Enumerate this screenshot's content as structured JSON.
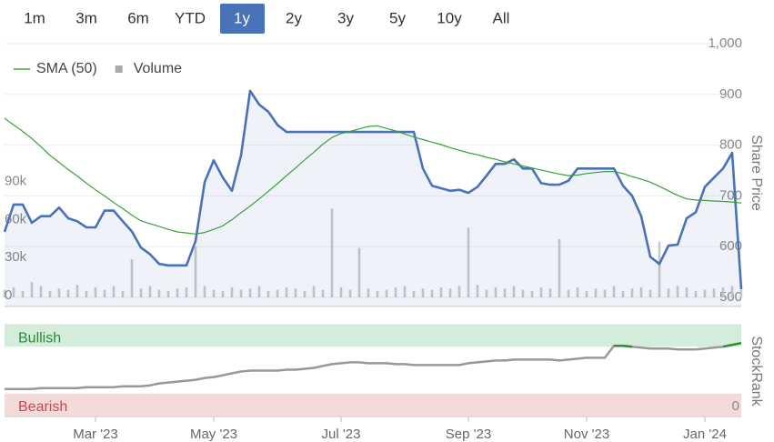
{
  "range_buttons": [
    "1m",
    "3m",
    "6m",
    "YTD",
    "1y",
    "2y",
    "3y",
    "5y",
    "10y",
    "All"
  ],
  "selected_range": "1y",
  "chart_data": [
    {
      "type": "line",
      "ylabel": "Share Price",
      "ylim": [
        500,
        1000
      ],
      "yticks": [
        500,
        600,
        700,
        800,
        900,
        {
          "value": 1000,
          "label": "1,000"
        }
      ],
      "y2lim": [
        0,
        200000
      ],
      "y2ticks": [
        0,
        {
          "value": 30000,
          "label": "30k"
        },
        {
          "value": 60000,
          "label": "60k"
        },
        {
          "value": 90000,
          "label": "90k"
        }
      ],
      "grid": true,
      "legend": "top-left",
      "series": [
        {
          "color": "#4a72b8",
          "area": true,
          "values": [
            629,
            683,
            683,
            647,
            660,
            660,
            677,
            656,
            650,
            638,
            638,
            671,
            671,
            650,
            630,
            598,
            585,
            566,
            563,
            563,
            563,
            611,
            727,
            770,
            736,
            710,
            780,
            907,
            880,
            866,
            840,
            826,
            826,
            826,
            826,
            826,
            826,
            826,
            826,
            826,
            826,
            826,
            826,
            826,
            826,
            826,
            754,
            720,
            715,
            710,
            712,
            706,
            718,
            740,
            763,
            763,
            772,
            754,
            754,
            725,
            722,
            722,
            730,
            754,
            754,
            754,
            754,
            754,
            720,
            700,
            660,
            580,
            566,
            602,
            604,
            656,
            668,
            718,
            736,
            754,
            785,
            516
          ]
        },
        {
          "name": "SMA (50)",
          "color": "#3aa03a",
          "values": [
            853,
            840,
            827,
            813,
            797,
            780,
            766,
            752,
            739,
            725,
            712,
            700,
            687,
            675,
            662,
            651,
            645,
            640,
            634,
            629,
            627,
            625,
            628,
            634,
            641,
            653,
            667,
            680,
            694,
            709,
            724,
            740,
            755,
            771,
            786,
            802,
            815,
            823,
            827,
            832,
            837,
            838,
            833,
            828,
            822,
            816,
            811,
            806,
            801,
            795,
            790,
            785,
            781,
            776,
            772,
            767,
            763,
            759,
            755,
            751,
            747,
            743,
            740,
            741,
            744,
            746,
            748,
            748,
            744,
            738,
            733,
            727,
            719,
            710,
            701,
            694,
            692,
            691,
            690,
            689,
            688,
            686
          ]
        },
        {
          "name": "Volume",
          "color": "#c8c8cc",
          "type": "bar",
          "axis": "y2",
          "values": [
            6000,
            8000,
            5000,
            12000,
            9000,
            5000,
            7000,
            6000,
            10000,
            5000,
            8000,
            6000,
            9000,
            5000,
            30000,
            7000,
            9000,
            6000,
            5000,
            7000,
            8000,
            40000,
            9000,
            6000,
            5000,
            8000,
            6000,
            7000,
            9000,
            5000,
            6000,
            8000,
            7000,
            5000,
            9000,
            6000,
            70000,
            8000,
            6000,
            39000,
            7000,
            5000,
            6000,
            8000,
            9000,
            5000,
            7000,
            6000,
            8000,
            7000,
            9000,
            55000,
            10000,
            6000,
            8000,
            7000,
            9000,
            6000,
            5000,
            8000,
            7000,
            46000,
            6000,
            8000,
            5000,
            7000,
            6000,
            9000,
            5000,
            7000,
            8000,
            6000,
            44000,
            7000,
            9000,
            8000,
            5000,
            6000,
            7000,
            8000,
            9000,
            6000
          ]
        }
      ]
    },
    {
      "type": "line",
      "ylabel": "StockRank",
      "ylim": [
        0,
        100
      ],
      "yticks": [
        0
      ],
      "bands": [
        {
          "label": "Bullish",
          "from": 76,
          "to": 100,
          "color": "#d4eddb",
          "text_color": "#2e8b3a"
        },
        {
          "label": "Bearish",
          "from": 0,
          "to": 25,
          "color": "#f5dada",
          "text_color": "#d0454c"
        }
      ],
      "categories": [
        null,
        null,
        null,
        null,
        null,
        null,
        null,
        null,
        null,
        null,
        "Mar '23",
        null,
        null,
        null,
        null,
        null,
        null,
        null,
        null,
        null,
        null,
        null,
        null,
        "May '23",
        null,
        null,
        null,
        null,
        null,
        null,
        null,
        null,
        null,
        null,
        null,
        null,
        null,
        "Jul '23",
        null,
        null,
        null,
        null,
        null,
        null,
        null,
        null,
        null,
        null,
        null,
        null,
        null,
        "Sep '23",
        null,
        null,
        null,
        null,
        null,
        null,
        null,
        null,
        null,
        null,
        null,
        null,
        "Nov '23",
        null,
        null,
        null,
        null,
        null,
        null,
        null,
        null,
        null,
        null,
        null,
        null,
        "Jan '24",
        null,
        null,
        null,
        null
      ],
      "series": [
        {
          "color": "#999999",
          "highlight_color": "#2e8b3a",
          "values": [
            30,
            30,
            30,
            30,
            31,
            31,
            31,
            31,
            31,
            32,
            32,
            32,
            32,
            33,
            33,
            33,
            34,
            36,
            37,
            38,
            39,
            40,
            42,
            43,
            45,
            47,
            49,
            50,
            50,
            50,
            50,
            51,
            51,
            52,
            53,
            55,
            57,
            58,
            59,
            59,
            58,
            58,
            58,
            57,
            57,
            56,
            56,
            56,
            56,
            56,
            56,
            58,
            59,
            60,
            61,
            61,
            62,
            62,
            62,
            62,
            62,
            61,
            62,
            63,
            64,
            64,
            64,
            77,
            77,
            76,
            75,
            74,
            74,
            74,
            73,
            73,
            73,
            74,
            75,
            76,
            78,
            80
          ]
        }
      ]
    }
  ]
}
